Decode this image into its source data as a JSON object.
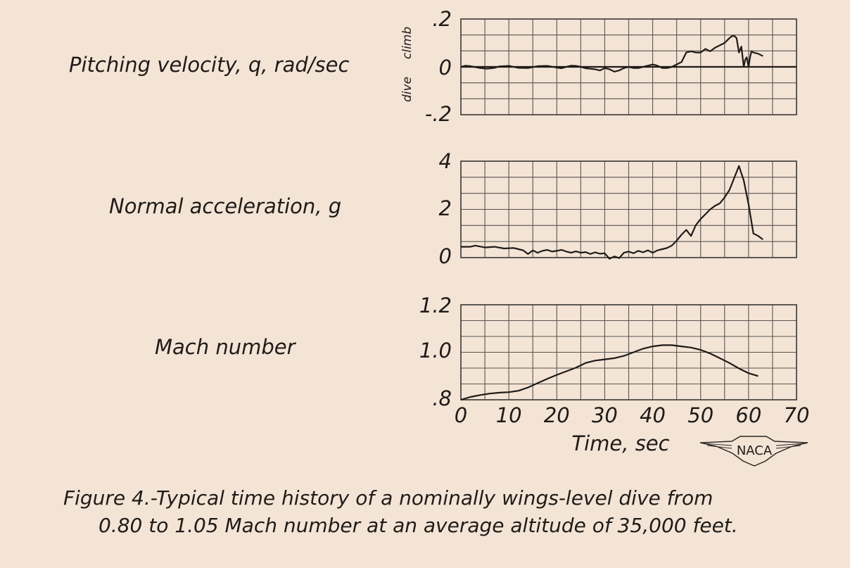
{
  "chart_data": [
    {
      "type": "line",
      "row_label": "Pitching velocity, q, rad/sec",
      "side_labels": [
        "dive",
        "climb"
      ],
      "ylim": [
        -0.2,
        0.2
      ],
      "yticks": [
        ".2",
        "0",
        "-.2"
      ],
      "xlim": [
        0,
        70
      ],
      "grid": true,
      "series": [
        {
          "x": [
            0,
            1,
            2,
            4,
            5.5,
            7,
            8,
            10,
            12,
            14,
            16,
            18,
            20,
            21,
            22,
            23,
            24,
            25,
            26,
            27,
            28,
            29,
            30,
            31,
            32,
            33,
            34,
            35,
            36,
            37,
            38,
            39,
            40,
            41,
            42,
            43,
            44,
            45,
            46,
            47,
            48,
            49,
            50,
            51,
            51.5,
            52,
            53,
            54,
            55,
            56,
            56.5,
            57,
            57.5,
            58,
            58.5,
            59,
            59.3,
            59.6,
            60,
            60.3,
            60.6,
            61,
            62,
            63
          ],
          "y": [
            0,
            0.005,
            0.003,
            -0.005,
            -0.008,
            -0.004,
            0.002,
            0.004,
            -0.004,
            -0.005,
            0.003,
            0.004,
            -0.003,
            -0.006,
            0,
            0.005,
            0.004,
            0,
            -0.006,
            -0.008,
            -0.01,
            -0.015,
            -0.005,
            -0.01,
            -0.02,
            -0.015,
            -0.005,
            0,
            -0.005,
            -0.005,
            0,
            0.005,
            0.01,
            0.005,
            -0.005,
            -0.005,
            0,
            0.01,
            0.02,
            0.06,
            0.065,
            0.06,
            0.06,
            0.075,
            0.07,
            0.065,
            0.08,
            0.09,
            0.1,
            0.12,
            0.128,
            0.13,
            0.12,
            0.06,
            0.085,
            0,
            0.03,
            0.04,
            0,
            0.04,
            0.065,
            0.06,
            0.055,
            0.045
          ]
        }
      ]
    },
    {
      "type": "line",
      "row_label": "Normal acceleration, g",
      "ylim": [
        0,
        4
      ],
      "yticks": [
        "4",
        "2",
        "0"
      ],
      "xlim": [
        0,
        70
      ],
      "grid": true,
      "series": [
        {
          "x": [
            0,
            2,
            3,
            5,
            7,
            9,
            11,
            12,
            13,
            14,
            15,
            16,
            17,
            18,
            19,
            20,
            21,
            22,
            23,
            24,
            25,
            26,
            27,
            28,
            29,
            30,
            31,
            32,
            33,
            34,
            35,
            36,
            37,
            38,
            39,
            40,
            41,
            42,
            43,
            44,
            45,
            46,
            47,
            48,
            49,
            50,
            51,
            52,
            53,
            54,
            55,
            56,
            57,
            58,
            59,
            60,
            61,
            62,
            63
          ],
          "y": [
            0.45,
            0.45,
            0.5,
            0.42,
            0.45,
            0.38,
            0.4,
            0.35,
            0.3,
            0.15,
            0.3,
            0.2,
            0.28,
            0.32,
            0.25,
            0.28,
            0.32,
            0.25,
            0.2,
            0.26,
            0.2,
            0.23,
            0.15,
            0.22,
            0.16,
            0.18,
            -0.05,
            0.05,
            -0.02,
            0.2,
            0.25,
            0.18,
            0.28,
            0.22,
            0.3,
            0.2,
            0.3,
            0.35,
            0.4,
            0.5,
            0.7,
            0.95,
            1.15,
            0.9,
            1.35,
            1.6,
            1.8,
            2.0,
            2.15,
            2.25,
            2.5,
            2.8,
            3.3,
            3.8,
            3.2,
            2.2,
            1.0,
            0.9,
            0.75
          ]
        }
      ]
    },
    {
      "type": "line",
      "row_label": "Mach number",
      "ylim": [
        0.8,
        1.2
      ],
      "yticks": [
        "1.2",
        "1.0",
        ".8"
      ],
      "xlim": [
        0,
        70
      ],
      "xticks": [
        "0",
        "10",
        "20",
        "30",
        "40",
        "50",
        "60",
        "70"
      ],
      "xlabel": "Time, sec",
      "grid": true,
      "series": [
        {
          "x": [
            0,
            2,
            4,
            6,
            8,
            10,
            12,
            14,
            16,
            18,
            20,
            22,
            24,
            26,
            28,
            30,
            32,
            34,
            36,
            38,
            40,
            42,
            44,
            46,
            48,
            50,
            52,
            54,
            56,
            58,
            60,
            62
          ],
          "y": [
            0.8,
            0.812,
            0.82,
            0.826,
            0.83,
            0.832,
            0.838,
            0.852,
            0.87,
            0.888,
            0.905,
            0.92,
            0.935,
            0.955,
            0.965,
            0.97,
            0.975,
            0.985,
            1.0,
            1.015,
            1.025,
            1.03,
            1.03,
            1.025,
            1.02,
            1.01,
            0.995,
            0.975,
            0.955,
            0.932,
            0.912,
            0.9
          ]
        }
      ]
    }
  ],
  "caption_line1": "Figure 4.-Typical time history of a nominally wings-level dive from",
  "caption_line2": "0.80 to 1.05 Mach number at an average altitude of 35,000 feet.",
  "logo_text": "NACA",
  "colors": {
    "paper": "#f3e4d6",
    "ink": "#1f1b18",
    "marker": "#d63a2f"
  }
}
